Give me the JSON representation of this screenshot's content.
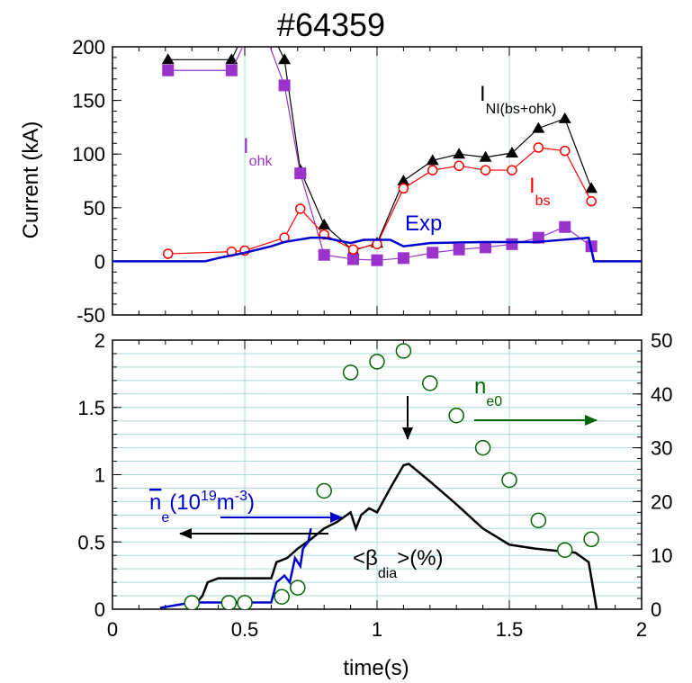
{
  "chart_data": [
    {
      "type": "line",
      "title": "#64359",
      "ylabel": "Current (kA)",
      "xlim": [
        0,
        2
      ],
      "xticks": [
        0,
        0.5,
        1,
        1.5,
        2
      ],
      "show_xtick_labels": false,
      "xminor": 0.1,
      "ylim": [
        -50,
        200
      ],
      "yticks": [
        -50,
        0,
        50,
        100,
        150,
        200
      ],
      "yminor": 10,
      "grid": "x",
      "series": [
        {
          "name_parts": [
            {
              "t": "I"
            },
            {
              "t": "NI(bs+ohk)",
              "s": "sub"
            }
          ],
          "color": "#000000",
          "marker": "triangle",
          "x": [
            0.21,
            0.45,
            0.55,
            0.65,
            0.71,
            0.8,
            0.91,
            1.0,
            1.1,
            1.21,
            1.31,
            1.41,
            1.51,
            1.61,
            1.71,
            1.81
          ],
          "values": [
            188,
            188,
            240,
            188,
            85,
            34,
            10,
            17,
            75,
            94,
            100,
            97,
            101,
            124,
            133,
            68
          ]
        },
        {
          "name_parts": [
            {
              "t": "I"
            },
            {
              "t": "ohk",
              "s": "sub"
            }
          ],
          "color": "#9933cc",
          "marker": "square",
          "x": [
            0.21,
            0.45,
            0.55,
            0.65,
            0.71,
            0.8,
            0.91,
            1.0,
            1.1,
            1.21,
            1.31,
            1.41,
            1.51,
            1.61,
            1.71,
            1.81
          ],
          "values": [
            178,
            178,
            230,
            164,
            82,
            6,
            2,
            1,
            3,
            8,
            11,
            13,
            16,
            22,
            32,
            14
          ]
        },
        {
          "name_parts": [
            {
              "t": "I"
            },
            {
              "t": "bs",
              "s": "sub"
            }
          ],
          "color": "#ff0000",
          "marker": "circle-open",
          "x": [
            0.21,
            0.45,
            0.5,
            0.65,
            0.71,
            0.8,
            0.91,
            1.0,
            1.1,
            1.21,
            1.31,
            1.41,
            1.51,
            1.61,
            1.71,
            1.81
          ],
          "values": [
            7,
            9,
            10,
            22,
            49,
            25,
            11,
            16,
            68,
            85,
            89,
            85,
            85,
            106,
            103,
            56
          ]
        },
        {
          "name_parts": [
            {
              "t": "Exp"
            }
          ],
          "color": "#0000cc",
          "marker": "none",
          "x": [
            0,
            0.35,
            0.4,
            0.5,
            0.6,
            0.65,
            0.75,
            0.8,
            0.9,
            0.95,
            1.05,
            1.1,
            1.2,
            1.4,
            1.6,
            1.7,
            1.8,
            1.82,
            2.0
          ],
          "values": [
            0,
            0,
            3,
            8,
            14,
            18,
            22,
            22,
            17,
            20,
            20,
            14,
            17,
            18,
            18,
            20,
            22,
            0,
            0
          ]
        }
      ]
    },
    {
      "type": "line",
      "xlabel": "time(s)",
      "xlim": [
        0,
        2
      ],
      "xticks": [
        0,
        0.5,
        1,
        1.5,
        2
      ],
      "show_xtick_labels": true,
      "xminor": 0.1,
      "ylim": [
        0,
        2
      ],
      "yticks": [
        0,
        0.5,
        1,
        1.5,
        2
      ],
      "yminor": 0.1,
      "y2lim": [
        0,
        50
      ],
      "y2ticks": [
        0,
        10,
        20,
        30,
        40,
        50
      ],
      "y2minor": 2,
      "grid": "x",
      "ygrid_minor": true,
      "series": [
        {
          "name_parts": [
            {
              "t": "<β"
            },
            {
              "t": "dia",
              "s": "sub"
            },
            {
              "t": ">(%)"
            }
          ],
          "color": "#000000",
          "marker": "none",
          "x": [
            0.3,
            0.34,
            0.36,
            0.4,
            0.6,
            0.62,
            0.66,
            0.7,
            0.75,
            0.8,
            0.85,
            0.9,
            0.92,
            0.94,
            0.97,
            1.0,
            1.05,
            1.1,
            1.12,
            1.2,
            1.3,
            1.4,
            1.5,
            1.6,
            1.7,
            1.75,
            1.8,
            1.83
          ],
          "values": [
            0,
            0.1,
            0.2,
            0.23,
            0.23,
            0.35,
            0.38,
            0.45,
            0.52,
            0.6,
            0.65,
            0.72,
            0.6,
            0.7,
            0.75,
            0.72,
            0.9,
            1.07,
            1.08,
            0.95,
            0.78,
            0.6,
            0.48,
            0.45,
            0.43,
            0.42,
            0.35,
            0
          ]
        },
        {
          "name_parts": [
            {
              "t": "n",
              "s": "over"
            },
            {
              "t": "e",
              "s": "sub"
            },
            {
              "t": "(10"
            },
            {
              "t": "19",
              "s": "sup"
            },
            {
              "t": "m"
            },
            {
              "t": "-3",
              "s": "sup"
            },
            {
              "t": ")"
            }
          ],
          "color": "#0000cc",
          "marker": "none",
          "x": [
            0.18,
            0.3,
            0.6,
            0.62,
            0.65,
            0.67,
            0.69,
            0.71,
            0.72,
            0.74,
            0.75
          ],
          "values": [
            0.01,
            0.05,
            0.05,
            0.2,
            0.25,
            0.2,
            0.38,
            0.32,
            0.45,
            0.5,
            0.6
          ]
        },
        {
          "name_parts": [
            {
              "t": "n"
            },
            {
              "t": "e0",
              "s": "sub"
            }
          ],
          "color": "#006600",
          "marker": "circle-open",
          "axis": "y2",
          "x": [
            0.3,
            0.44,
            0.5,
            0.64,
            0.7,
            0.8,
            0.9,
            1.0,
            1.1,
            1.2,
            1.3,
            1.4,
            1.5,
            1.61,
            1.71,
            1.81
          ],
          "values": [
            1.2,
            1.2,
            1.2,
            2.3,
            4,
            22,
            44,
            46,
            48,
            42,
            36,
            30,
            24,
            16.5,
            11,
            13
          ]
        }
      ]
    }
  ]
}
